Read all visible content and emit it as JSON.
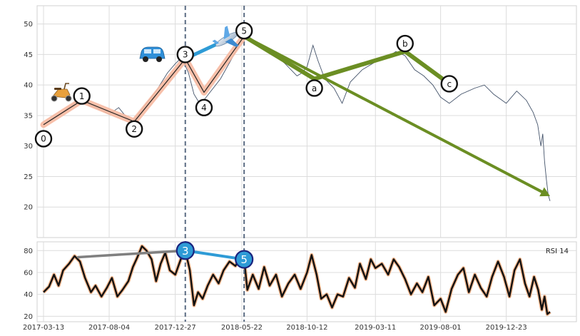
{
  "chart_data": [
    {
      "type": "line",
      "title": "",
      "xlabel": "",
      "ylabel": "",
      "ylim": [
        15,
        53
      ],
      "grid": true,
      "yticks": [
        20,
        25,
        30,
        35,
        40,
        45,
        50
      ],
      "series": [
        {
          "points": [
            [
              "2017-03-13",
              33.5
            ],
            [
              "2017-04-15",
              35.0
            ],
            [
              "2017-05-10",
              36.5
            ],
            [
              "2017-05-28",
              37.5
            ],
            [
              "2017-06-20",
              36.8
            ],
            [
              "2017-07-15",
              36.0
            ],
            [
              "2017-08-04",
              35.2
            ],
            [
              "2017-08-25",
              36.3
            ],
            [
              "2017-09-10",
              34.8
            ],
            [
              "2017-09-25",
              34.0
            ],
            [
              "2017-10-20",
              36.5
            ],
            [
              "2017-11-15",
              39.0
            ],
            [
              "2017-12-10",
              42.0
            ],
            [
              "2017-12-27",
              43.5
            ],
            [
              "2018-01-10",
              44.5
            ],
            [
              "2018-01-25",
              42.0
            ],
            [
              "2018-02-06",
              38.5
            ],
            [
              "2018-02-20",
              36.8
            ],
            [
              "2018-03-10",
              38.5
            ],
            [
              "2018-04-05",
              41.0
            ],
            [
              "2018-05-05",
              45.0
            ],
            [
              "2018-05-22",
              47.5
            ],
            [
              "2018-06-05",
              48.0
            ],
            [
              "2018-07-01",
              46.5
            ],
            [
              "2018-08-01",
              45.0
            ],
            [
              "2018-08-25",
              43.5
            ],
            [
              "2018-09-20",
              41.5
            ],
            [
              "2018-10-01",
              42.0
            ],
            [
              "2018-10-12",
              43.0
            ],
            [
              "2018-10-25",
              46.5
            ],
            [
              "2018-11-05",
              44.0
            ],
            [
              "2018-11-20",
              41.0
            ],
            [
              "2018-12-10",
              39.5
            ],
            [
              "2018-12-28",
              37.0
            ],
            [
              "2019-01-15",
              40.5
            ],
            [
              "2019-02-10",
              42.5
            ],
            [
              "2019-03-11",
              43.8
            ],
            [
              "2019-04-05",
              44.5
            ],
            [
              "2019-04-25",
              45.5
            ],
            [
              "2019-05-15",
              44.8
            ],
            [
              "2019-06-05",
              42.5
            ],
            [
              "2019-06-25",
              41.5
            ],
            [
              "2019-07-15",
              40.0
            ],
            [
              "2019-08-01",
              38.0
            ],
            [
              "2019-08-20",
              37.0
            ],
            [
              "2019-09-15",
              38.5
            ],
            [
              "2019-10-15",
              39.5
            ],
            [
              "2019-11-05",
              40.0
            ],
            [
              "2019-11-25",
              38.5
            ],
            [
              "2019-12-23",
              37.0
            ],
            [
              "2020-01-15",
              39.0
            ],
            [
              "2020-02-05",
              37.5
            ],
            [
              "2020-02-20",
              35.5
            ],
            [
              "2020-03-01",
              33.5
            ],
            [
              "2020-03-08",
              30.0
            ],
            [
              "2020-03-12",
              32.0
            ],
            [
              "2020-03-16",
              27.5
            ],
            [
              "2020-03-20",
              24.5
            ],
            [
              "2020-03-24",
              22.0
            ],
            [
              "2020-03-28",
              21.0
            ]
          ]
        }
      ],
      "wave_labels": [
        {
          "label": "0",
          "date": "2017-03-13",
          "value": 31.2,
          "color": "#ffffff"
        },
        {
          "label": "1",
          "date": "2017-06-05",
          "value": 38.2,
          "color": "#ffffff"
        },
        {
          "label": "2",
          "date": "2017-09-28",
          "value": 32.8,
          "color": "#ffffff"
        },
        {
          "label": "3",
          "date": "2018-01-18",
          "value": 45.0,
          "color": "#ffffff"
        },
        {
          "label": "4",
          "date": "2018-02-28",
          "value": 36.3,
          "color": "#ffffff"
        },
        {
          "label": "5",
          "date": "2018-05-27",
          "value": 48.9,
          "color": "#ffffff"
        },
        {
          "label": "a",
          "date": "2018-10-28",
          "value": 39.5,
          "color": "#ffffff"
        },
        {
          "label": "b",
          "date": "2019-05-15",
          "value": 46.8,
          "color": "#ffffff"
        },
        {
          "label": "c",
          "date": "2019-08-20",
          "value": 40.2,
          "color": "#ffffff"
        }
      ],
      "impulse_path": [
        [
          "2017-03-13",
          33.5
        ],
        [
          "2017-06-05",
          37.5
        ],
        [
          "2017-09-28",
          34.0
        ],
        [
          "2018-01-18",
          44.3
        ],
        [
          "2018-02-28",
          38.8
        ],
        [
          "2018-05-27",
          48.0
        ]
      ],
      "correction_path": [
        [
          "2018-05-27",
          48.0
        ],
        [
          "2018-10-28",
          41.0
        ],
        [
          "2019-05-15",
          45.5
        ],
        [
          "2019-08-20",
          40.2
        ]
      ],
      "blue_arrow": [
        [
          "2018-01-18",
          44.3
        ],
        [
          "2018-05-10",
          48.2
        ]
      ],
      "target_arrow": [
        [
          "2018-05-27",
          48.0
        ],
        [
          "2020-03-28",
          21.8
        ]
      ],
      "vlines": [
        "2018-01-18",
        "2018-05-27"
      ],
      "colors": {
        "price": "#44536a",
        "impulse_glow": "#f7b9a1",
        "impulse_line": "#222222",
        "correction": "#6b8e23",
        "blue": "#2e9bd6",
        "vline": "#5a6b82"
      },
      "icons": [
        "scooter-icon",
        "car-icon",
        "airplane-icon"
      ]
    },
    {
      "type": "line",
      "label": "RSI 14",
      "ylim": [
        15,
        88
      ],
      "yticks": [
        20,
        40,
        60,
        80
      ],
      "xticks": [
        "2017-03-13",
        "2017-08-04",
        "2017-12-27",
        "2018-05-22",
        "2018-10-12",
        "2019-03-11",
        "2019-08-01",
        "2019-12-23"
      ],
      "series": [
        {
          "points": [
            [
              "2017-03-13",
              42
            ],
            [
              "2017-03-25",
              47
            ],
            [
              "2017-04-05",
              58
            ],
            [
              "2017-04-15",
              48
            ],
            [
              "2017-04-25",
              62
            ],
            [
              "2017-05-08",
              68
            ],
            [
              "2017-05-20",
              75
            ],
            [
              "2017-06-01",
              70
            ],
            [
              "2017-06-12",
              55
            ],
            [
              "2017-06-25",
              42
            ],
            [
              "2017-07-05",
              48
            ],
            [
              "2017-07-18",
              38
            ],
            [
              "2017-07-30",
              46
            ],
            [
              "2017-08-10",
              55
            ],
            [
              "2017-08-22",
              38
            ],
            [
              "2017-09-02",
              44
            ],
            [
              "2017-09-15",
              52
            ],
            [
              "2017-09-25",
              65
            ],
            [
              "2017-10-05",
              74
            ],
            [
              "2017-10-15",
              84
            ],
            [
              "2017-10-25",
              80
            ],
            [
              "2017-11-05",
              72
            ],
            [
              "2017-11-15",
              52
            ],
            [
              "2017-11-25",
              68
            ],
            [
              "2017-12-05",
              78
            ],
            [
              "2017-12-15",
              62
            ],
            [
              "2017-12-27",
              58
            ],
            [
              "2018-01-08",
              72
            ],
            [
              "2018-01-18",
              80
            ],
            [
              "2018-01-28",
              62
            ],
            [
              "2018-02-06",
              30
            ],
            [
              "2018-02-15",
              42
            ],
            [
              "2018-02-25",
              36
            ],
            [
              "2018-03-08",
              48
            ],
            [
              "2018-03-20",
              58
            ],
            [
              "2018-04-01",
              50
            ],
            [
              "2018-04-12",
              62
            ],
            [
              "2018-04-25",
              70
            ],
            [
              "2018-05-08",
              66
            ],
            [
              "2018-05-22",
              76
            ],
            [
              "2018-05-27",
              72
            ],
            [
              "2018-06-03",
              44
            ],
            [
              "2018-06-15",
              58
            ],
            [
              "2018-06-28",
              45
            ],
            [
              "2018-07-10",
              65
            ],
            [
              "2018-07-22",
              48
            ],
            [
              "2018-08-05",
              58
            ],
            [
              "2018-08-18",
              38
            ],
            [
              "2018-09-01",
              50
            ],
            [
              "2018-09-15",
              58
            ],
            [
              "2018-09-28",
              45
            ],
            [
              "2018-10-12",
              60
            ],
            [
              "2018-10-22",
              76
            ],
            [
              "2018-11-02",
              58
            ],
            [
              "2018-11-12",
              36
            ],
            [
              "2018-11-24",
              40
            ],
            [
              "2018-12-06",
              28
            ],
            [
              "2018-12-18",
              40
            ],
            [
              "2018-12-30",
              38
            ],
            [
              "2019-01-12",
              55
            ],
            [
              "2019-01-25",
              46
            ],
            [
              "2019-02-05",
              68
            ],
            [
              "2019-02-18",
              54
            ],
            [
              "2019-03-01",
              72
            ],
            [
              "2019-03-11",
              64
            ],
            [
              "2019-03-25",
              68
            ],
            [
              "2019-04-08",
              58
            ],
            [
              "2019-04-20",
              72
            ],
            [
              "2019-05-02",
              65
            ],
            [
              "2019-05-15",
              54
            ],
            [
              "2019-05-28",
              40
            ],
            [
              "2019-06-10",
              50
            ],
            [
              "2019-06-22",
              42
            ],
            [
              "2019-07-05",
              56
            ],
            [
              "2019-07-18",
              30
            ],
            [
              "2019-08-01",
              36
            ],
            [
              "2019-08-12",
              24
            ],
            [
              "2019-08-25",
              45
            ],
            [
              "2019-09-08",
              58
            ],
            [
              "2019-09-20",
              64
            ],
            [
              "2019-10-02",
              42
            ],
            [
              "2019-10-15",
              58
            ],
            [
              "2019-10-28",
              46
            ],
            [
              "2019-11-10",
              38
            ],
            [
              "2019-11-22",
              56
            ],
            [
              "2019-12-05",
              70
            ],
            [
              "2019-12-18",
              56
            ],
            [
              "2019-12-30",
              38
            ],
            [
              "2020-01-10",
              62
            ],
            [
              "2020-01-22",
              72
            ],
            [
              "2020-02-02",
              50
            ],
            [
              "2020-02-12",
              38
            ],
            [
              "2020-02-22",
              56
            ],
            [
              "2020-03-02",
              44
            ],
            [
              "2020-03-10",
              26
            ],
            [
              "2020-03-16",
              38
            ],
            [
              "2020-03-22",
              22
            ],
            [
              "2020-03-28",
              24
            ]
          ]
        }
      ],
      "wave_labels": [
        {
          "label": "3",
          "date": "2018-01-18",
          "value": 80,
          "color": "#2e9bd6"
        },
        {
          "label": "5",
          "date": "2018-05-27",
          "value": 72,
          "color": "#2e9bd6"
        }
      ],
      "gray_line": [
        [
          "2017-05-28",
          74
        ],
        [
          "2018-01-18",
          80
        ]
      ],
      "blue_line": [
        [
          "2018-01-18",
          80
        ],
        [
          "2018-05-27",
          72
        ]
      ],
      "colors": {
        "line": "#111111",
        "glow": "#f2b48a",
        "gray": "#808080",
        "blue": "#2e9bd6"
      }
    }
  ]
}
